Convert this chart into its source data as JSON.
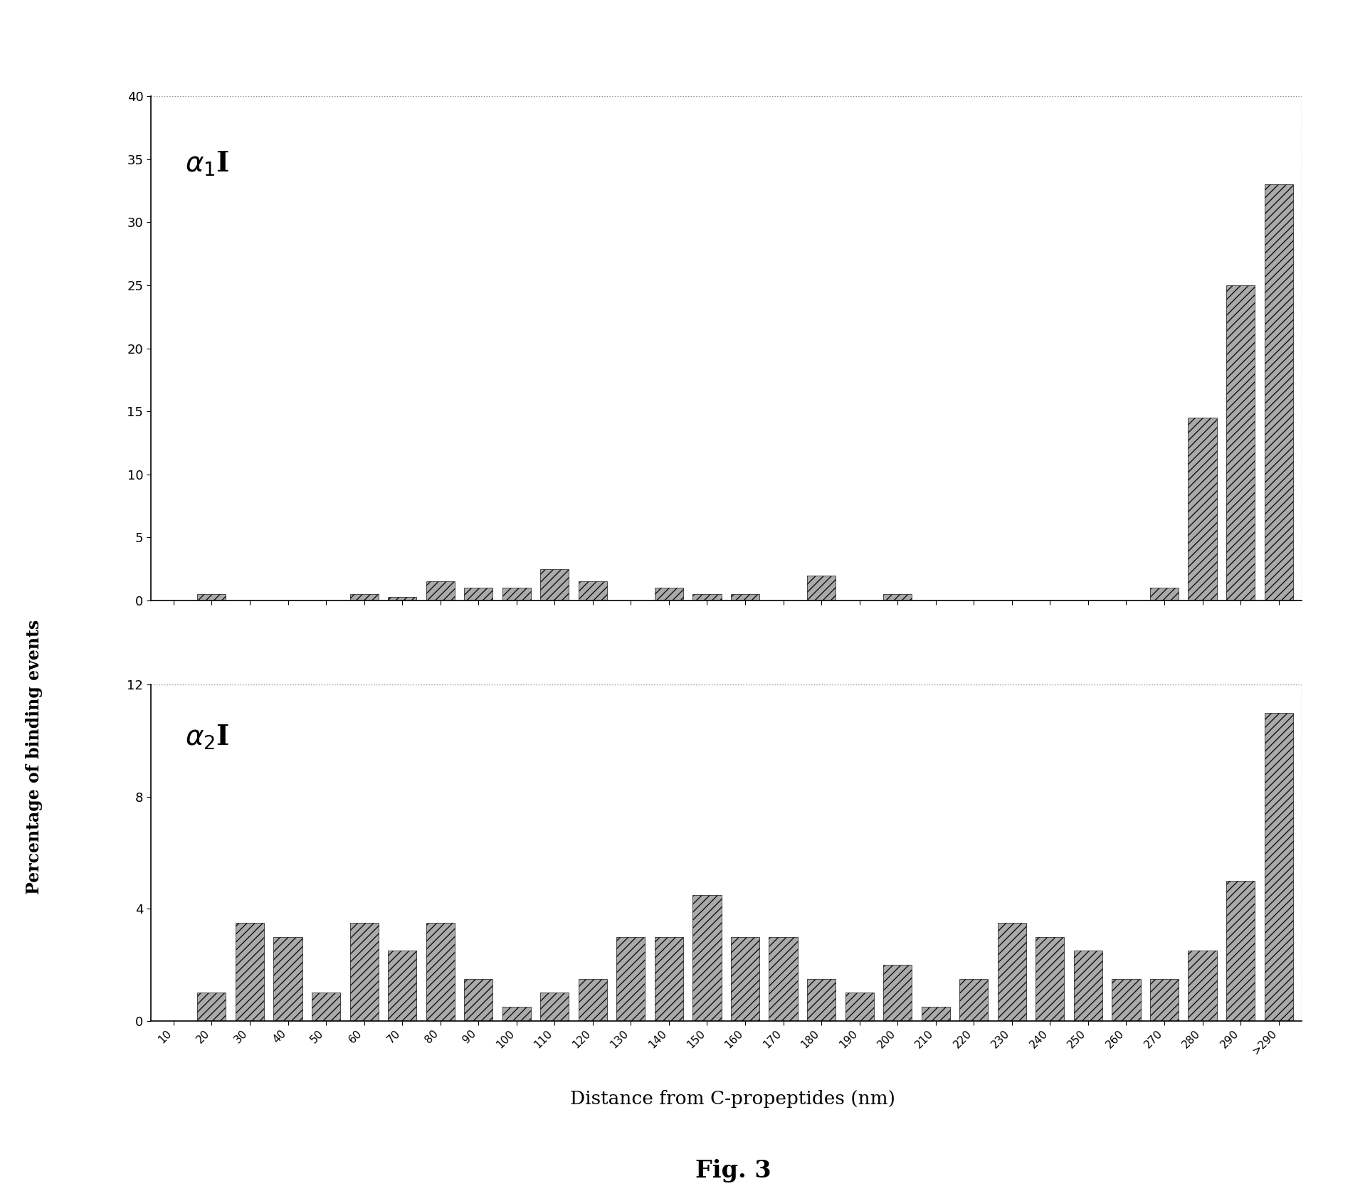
{
  "categories": [
    "10",
    "20",
    "30",
    "40",
    "50",
    "60",
    "70",
    "80",
    "90",
    "100",
    "110",
    "120",
    "130",
    "140",
    "150",
    "160",
    "170",
    "180",
    "190",
    "200",
    "210",
    "220",
    "230",
    "240",
    "250",
    "260",
    "270",
    "280",
    "290",
    ">290"
  ],
  "alpha1_values": [
    0.0,
    0.5,
    0.0,
    0.0,
    0.0,
    0.5,
    0.3,
    1.5,
    1.0,
    1.0,
    2.5,
    1.5,
    0.0,
    1.0,
    0.5,
    0.5,
    0.0,
    2.0,
    0.0,
    0.5,
    0.0,
    0.0,
    0.0,
    0.0,
    0.0,
    0.0,
    1.0,
    14.5,
    25.0,
    33.0
  ],
  "alpha2_values": [
    0.0,
    1.0,
    3.5,
    3.0,
    1.0,
    3.5,
    2.5,
    3.5,
    1.5,
    0.5,
    1.0,
    1.5,
    3.0,
    3.0,
    4.5,
    3.0,
    3.0,
    1.5,
    1.0,
    2.0,
    0.5,
    1.5,
    3.5,
    3.0,
    2.5,
    1.5,
    1.5,
    2.5,
    5.0,
    11.0
  ],
  "ylabel": "Percentage of binding events",
  "xlabel": "Distance from C-propeptides (nm)",
  "alpha1_ylim": [
    0,
    40
  ],
  "alpha2_ylim": [
    0,
    12
  ],
  "alpha1_yticks": [
    0,
    5,
    10,
    15,
    20,
    25,
    30,
    35,
    40
  ],
  "alpha2_yticks": [
    0,
    4,
    8,
    12
  ],
  "fig_title": "Fig. 3",
  "background_color": "#ffffff",
  "bar_color": "#aaaaaa",
  "bar_edgecolor": "#111111",
  "dashed_color": "#888888"
}
